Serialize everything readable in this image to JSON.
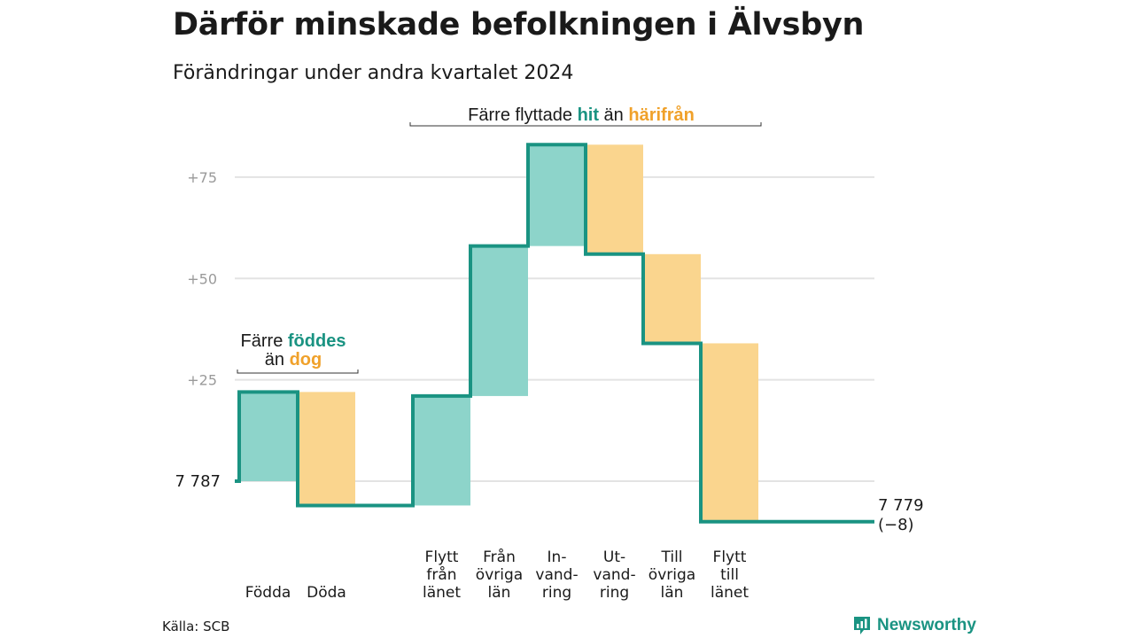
{
  "title": "Därför minskade befolkningen i Älvsbyn",
  "subtitle": "Förändringar under andra kvartalet 2024",
  "source": "Källa: SCB",
  "brand": {
    "name": "Newsworthy",
    "icon": "chart-speech-bubble-icon"
  },
  "colors": {
    "increase": "#8dd4ca",
    "decrease": "#fad58e",
    "line": "#1a9382",
    "grid": "#e3e3e3",
    "accent_orange": "#f0a12a"
  },
  "chart_data": {
    "type": "waterfall",
    "start_value": 7787,
    "end_value": 7779,
    "start_label": "7 787",
    "end_label": "7 779",
    "net_change_label": "(−8)",
    "y_ticks": [
      25,
      50,
      75
    ],
    "y_tick_labels": [
      "+25",
      "+50",
      "+75"
    ],
    "ylim": [
      -10,
      90
    ],
    "steps": [
      {
        "category": [
          "Födda"
        ],
        "change": 22,
        "kind": "in"
      },
      {
        "category": [
          "Döda"
        ],
        "change": -28,
        "kind": "out"
      },
      {
        "category": [
          "Flytt",
          "från",
          "länet"
        ],
        "change": 27,
        "kind": "in"
      },
      {
        "category": [
          "Från",
          "övriga",
          "län"
        ],
        "change": 37,
        "kind": "in"
      },
      {
        "category": [
          "In-",
          "vand-",
          "ring"
        ],
        "change": 25,
        "kind": "in"
      },
      {
        "category": [
          "Ut-",
          "vand-",
          "ring"
        ],
        "change": -27,
        "kind": "out"
      },
      {
        "category": [
          "Till",
          "övriga",
          "län"
        ],
        "change": -22,
        "kind": "out"
      },
      {
        "category": [
          "Flytt",
          "till",
          "länet"
        ],
        "change": -44,
        "kind": "out"
      }
    ],
    "annotations": [
      {
        "lines": [
          [
            {
              "text": "Färre ",
              "style": "plain"
            },
            {
              "text": "föddes",
              "style": "teal"
            }
          ],
          [
            {
              "text": "än ",
              "style": "plain"
            },
            {
              "text": "dog",
              "style": "orange"
            }
          ]
        ],
        "span": [
          0,
          1
        ]
      },
      {
        "lines": [
          [
            {
              "text": "Färre flyttade ",
              "style": "plain"
            },
            {
              "text": "hit",
              "style": "teal"
            },
            {
              "text": " än ",
              "style": "plain"
            },
            {
              "text": "härifrån",
              "style": "orange"
            }
          ]
        ],
        "span": [
          2,
          7
        ]
      }
    ]
  }
}
